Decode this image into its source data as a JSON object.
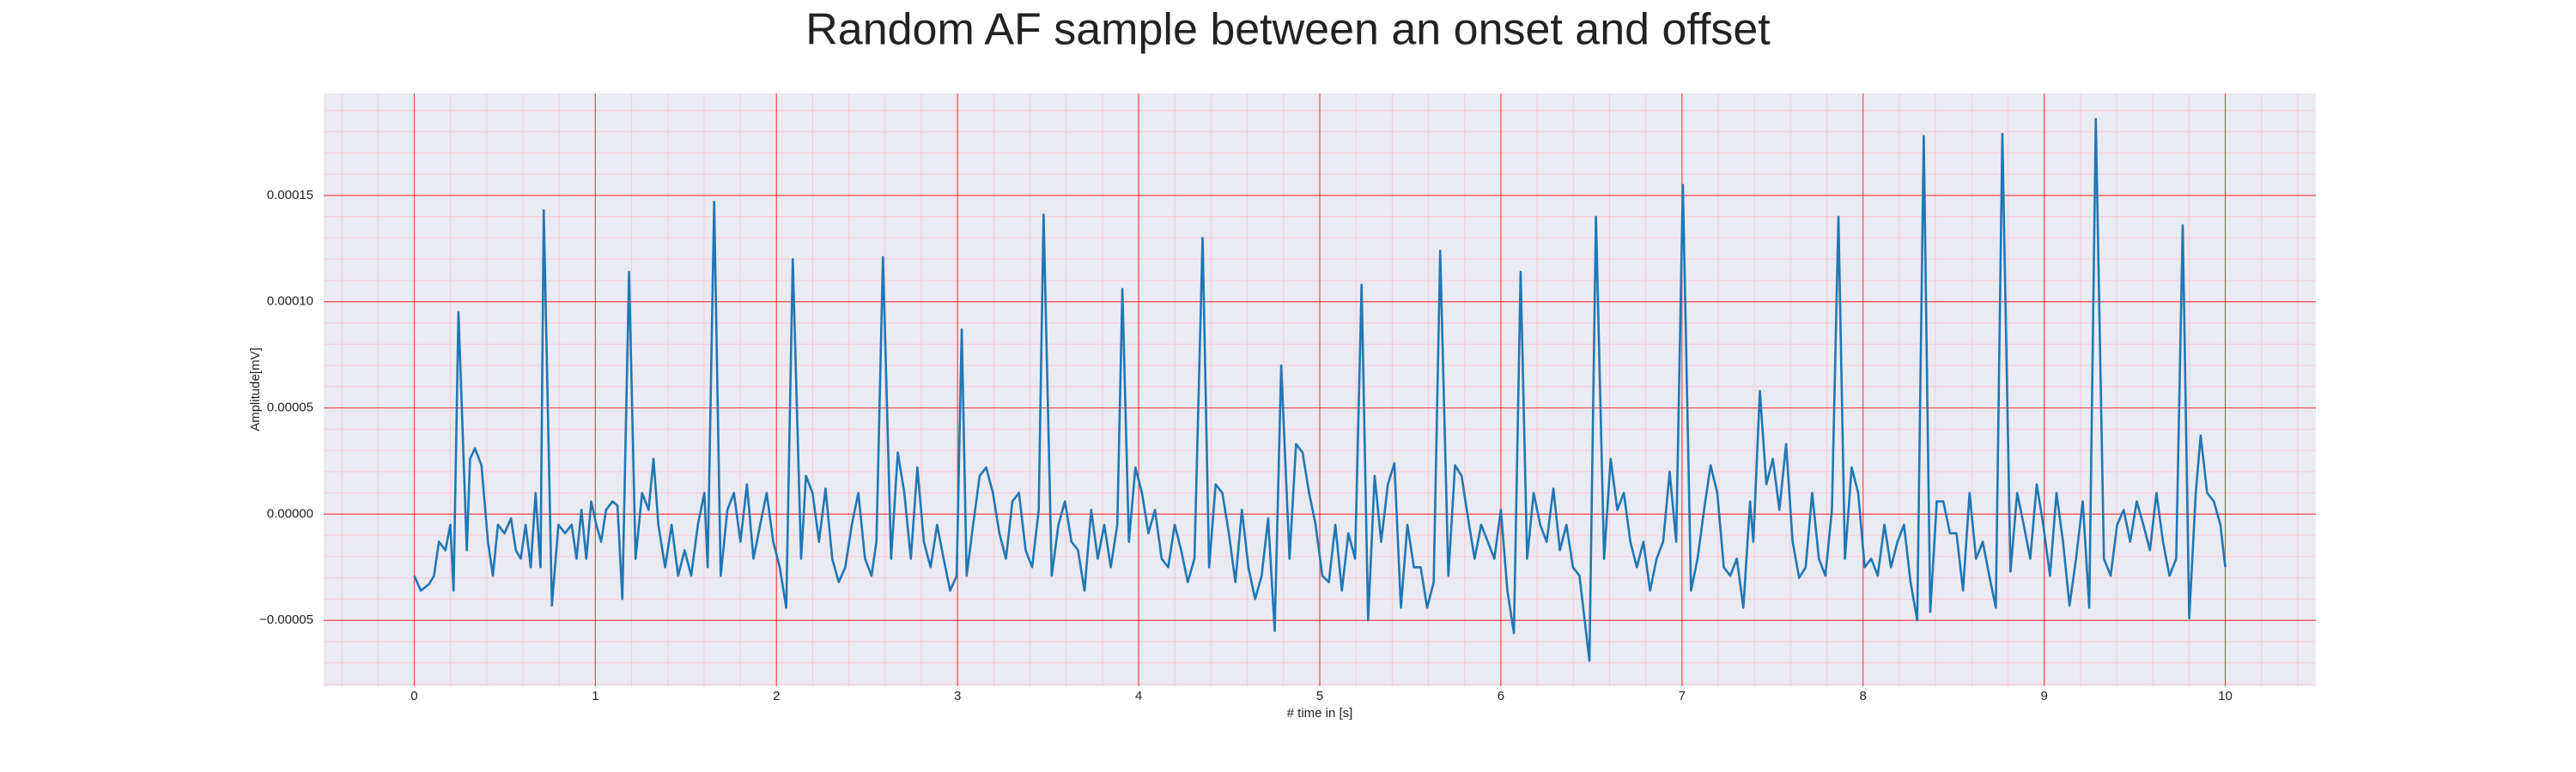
{
  "chart_data": {
    "type": "line",
    "title": "Random AF sample between an onset and offset",
    "xlabel": "# time in [s]",
    "ylabel": "Amplitude[mV]",
    "color": "#1f77b4",
    "grid": true,
    "grid_color": "#ff0000",
    "minor_grid": true,
    "minor_grid_color": "#ffc0cb",
    "minor_divisions": 5,
    "xlim": [
      -0.5,
      10.5
    ],
    "xticks": [
      0,
      1,
      2,
      3,
      4,
      5,
      6,
      7,
      8,
      9,
      10
    ],
    "ylim": [
      -8.1e-05,
      0.000198
    ],
    "yticks": [
      {
        "value": -5e-05,
        "label": "−0.00005"
      },
      {
        "value": 0,
        "label": "0.00000"
      },
      {
        "value": 5e-05,
        "label": "0.00005"
      },
      {
        "value": 0.0001,
        "label": "0.00010"
      },
      {
        "value": 0.00015,
        "label": "0.00015"
      }
    ],
    "x": [
      0.0,
      0.036,
      0.081,
      0.109,
      0.136,
      0.172,
      0.199,
      0.217,
      0.244,
      0.29,
      0.308,
      0.335,
      0.371,
      0.407,
      0.434,
      0.462,
      0.498,
      0.534,
      0.561,
      0.588,
      0.615,
      0.643,
      0.67,
      0.697,
      0.715,
      0.76,
      0.796,
      0.833,
      0.869,
      0.896,
      0.923,
      0.95,
      0.977,
      1.005,
      1.032,
      1.059,
      1.095,
      1.122,
      1.149,
      1.186,
      1.222,
      1.258,
      1.294,
      1.321,
      1.348,
      1.385,
      1.421,
      1.457,
      1.493,
      1.529,
      1.566,
      1.602,
      1.62,
      1.656,
      1.692,
      1.729,
      1.765,
      1.801,
      1.837,
      1.873,
      1.91,
      1.946,
      1.982,
      2.018,
      2.054,
      2.09,
      2.136,
      2.163,
      2.199,
      2.235,
      2.271,
      2.308,
      2.344,
      2.38,
      2.416,
      2.452,
      2.489,
      2.525,
      2.552,
      2.588,
      2.633,
      2.67,
      2.706,
      2.742,
      2.778,
      2.814,
      2.851,
      2.887,
      2.923,
      2.959,
      2.995,
      3.023,
      3.05,
      3.086,
      3.122,
      3.158,
      3.195,
      3.231,
      3.267,
      3.303,
      3.339,
      3.376,
      3.412,
      3.448,
      3.475,
      3.52,
      3.557,
      3.593,
      3.629,
      3.665,
      3.701,
      3.738,
      3.774,
      3.81,
      3.846,
      3.882,
      3.91,
      3.946,
      3.982,
      4.018,
      4.054,
      4.09,
      4.127,
      4.163,
      4.199,
      4.235,
      4.271,
      4.308,
      4.353,
      4.389,
      4.425,
      4.462,
      4.498,
      4.534,
      4.57,
      4.606,
      4.643,
      4.679,
      4.715,
      4.751,
      4.787,
      4.833,
      4.869,
      4.905,
      4.941,
      4.977,
      5.014,
      5.05,
      5.086,
      5.122,
      5.158,
      5.195,
      5.231,
      5.267,
      5.303,
      5.339,
      5.376,
      5.412,
      5.448,
      5.484,
      5.52,
      5.557,
      5.593,
      5.629,
      5.665,
      5.71,
      5.747,
      5.783,
      5.819,
      5.855,
      5.891,
      5.928,
      5.964,
      6.0,
      6.036,
      6.072,
      6.109,
      6.145,
      6.181,
      6.217,
      6.253,
      6.29,
      6.326,
      6.362,
      6.398,
      6.434,
      6.489,
      6.525,
      6.57,
      6.606,
      6.643,
      6.679,
      6.715,
      6.751,
      6.787,
      6.824,
      6.86,
      6.896,
      6.932,
      6.968,
      7.005,
      7.05,
      7.086,
      7.122,
      7.158,
      7.195,
      7.231,
      7.267,
      7.303,
      7.339,
      7.376,
      7.394,
      7.43,
      7.466,
      7.502,
      7.538,
      7.575,
      7.611,
      7.647,
      7.683,
      7.719,
      7.756,
      7.792,
      7.828,
      7.864,
      7.9,
      7.937,
      7.973,
      8.009,
      8.045,
      8.081,
      8.118,
      8.154,
      8.19,
      8.226,
      8.262,
      8.299,
      8.335,
      8.371,
      8.407,
      8.443,
      8.48,
      8.516,
      8.552,
      8.588,
      8.624,
      8.661,
      8.697,
      8.733,
      8.769,
      8.814,
      8.851,
      8.887,
      8.923,
      8.959,
      8.995,
      9.032,
      9.068,
      9.104,
      9.14,
      9.176,
      9.213,
      9.249,
      9.285,
      9.33,
      9.367,
      9.403,
      9.439,
      9.475,
      9.511,
      9.548,
      9.584,
      9.62,
      9.656,
      9.692,
      9.729,
      9.765,
      9.801,
      9.837,
      9.864,
      9.9,
      9.937,
      9.973,
      10.0
    ],
    "values": [
      -2.9e-05,
      -3.6e-05,
      -3.3e-05,
      -2.9e-05,
      -1.3e-05,
      -1.7e-05,
      -5e-06,
      -3.6e-05,
      9.5e-05,
      -1.7e-05,
      2.6e-05,
      3.1e-05,
      2.3e-05,
      -1.3e-05,
      -2.9e-05,
      -5e-06,
      -9e-06,
      -2e-06,
      -1.7e-05,
      -2.1e-05,
      -5e-06,
      -2.5e-05,
      1e-05,
      -2.5e-05,
      0.000143,
      -4.3e-05,
      -5e-06,
      -9e-06,
      -5e-06,
      -2.1e-05,
      2e-06,
      -2.1e-05,
      6e-06,
      -5e-06,
      -1.3e-05,
      2e-06,
      6e-06,
      4e-06,
      -4e-05,
      0.000114,
      -2.1e-05,
      1e-05,
      2e-06,
      2.6e-05,
      -5e-06,
      -2.5e-05,
      -5e-06,
      -2.9e-05,
      -1.7e-05,
      -2.9e-05,
      -5e-06,
      1e-05,
      -2.5e-05,
      0.000147,
      -2.9e-05,
      2e-06,
      1e-05,
      -1.3e-05,
      1.4e-05,
      -2.1e-05,
      -5e-06,
      1e-05,
      -1.3e-05,
      -2.5e-05,
      -4.4e-05,
      0.00012,
      -2.1e-05,
      1.8e-05,
      1e-05,
      -1.3e-05,
      1.2e-05,
      -2.1e-05,
      -3.2e-05,
      -2.5e-05,
      -5e-06,
      1e-05,
      -2.1e-05,
      -2.9e-05,
      -1.3e-05,
      0.000121,
      -2.1e-05,
      2.9e-05,
      1e-05,
      -2.1e-05,
      2.2e-05,
      -1.3e-05,
      -2.5e-05,
      -5e-06,
      -2.1e-05,
      -3.6e-05,
      -2.9e-05,
      8.7e-05,
      -2.9e-05,
      -5e-06,
      1.8e-05,
      2.2e-05,
      1e-05,
      -9e-06,
      -2.1e-05,
      6e-06,
      1e-05,
      -1.7e-05,
      -2.5e-05,
      2e-06,
      0.000141,
      -2.9e-05,
      -5e-06,
      6e-06,
      -1.3e-05,
      -1.7e-05,
      -3.6e-05,
      2e-06,
      -2.1e-05,
      -5e-06,
      -2.5e-05,
      -5e-06,
      0.000106,
      -1.3e-05,
      2.2e-05,
      1e-05,
      -9e-06,
      2e-06,
      -2.1e-05,
      -2.5e-05,
      -5e-06,
      -1.7e-05,
      -3.2e-05,
      -2.1e-05,
      0.00013,
      -2.5e-05,
      1.4e-05,
      1e-05,
      -9e-06,
      -3.2e-05,
      2e-06,
      -2.5e-05,
      -4e-05,
      -2.9e-05,
      -2e-06,
      -5.5e-05,
      7e-05,
      -2.1e-05,
      3.3e-05,
      2.9e-05,
      1e-05,
      -5e-06,
      -2.9e-05,
      -3.2e-05,
      -5e-06,
      -3.6e-05,
      -9e-06,
      -2.1e-05,
      0.000108,
      -5e-05,
      1.8e-05,
      -1.3e-05,
      1.4e-05,
      2.4e-05,
      -4.4e-05,
      -5e-06,
      -2.5e-05,
      -2.5e-05,
      -4.4e-05,
      -3.2e-05,
      0.000124,
      -2.9e-05,
      2.3e-05,
      1.8e-05,
      -2e-06,
      -2.1e-05,
      -5e-06,
      -1.3e-05,
      -2.1e-05,
      2e-06,
      -3.6e-05,
      -5.6e-05,
      0.000114,
      -2.1e-05,
      1e-05,
      -5e-06,
      -1.3e-05,
      1.2e-05,
      -1.7e-05,
      -5e-06,
      -2.5e-05,
      -2.9e-05,
      -6.9e-05,
      0.00014,
      -2.1e-05,
      2.6e-05,
      2e-06,
      1e-05,
      -1.3e-05,
      -2.5e-05,
      -1.3e-05,
      -3.6e-05,
      -2.1e-05,
      -1.3e-05,
      2e-05,
      -1.3e-05,
      0.000155,
      -3.6e-05,
      -2.1e-05,
      2e-06,
      2.3e-05,
      1e-05,
      -2.5e-05,
      -2.9e-05,
      -2.1e-05,
      -4.4e-05,
      6e-06,
      -1.3e-05,
      5.8e-05,
      1.4e-05,
      2.6e-05,
      2e-06,
      3.3e-05,
      -1.3e-05,
      -3e-05,
      -2.5e-05,
      1e-05,
      -2.1e-05,
      -2.9e-05,
      2e-06,
      0.00014,
      -2.1e-05,
      2.2e-05,
      1e-05,
      -2.5e-05,
      -2.1e-05,
      -2.9e-05,
      -5e-06,
      -2.5e-05,
      -1.3e-05,
      -5e-06,
      -3.2e-05,
      -5e-05,
      0.000178,
      -4.6e-05,
      6e-06,
      6e-06,
      -9e-06,
      -9e-06,
      -3.6e-05,
      1e-05,
      -2.1e-05,
      -1.3e-05,
      -2.9e-05,
      -4.4e-05,
      0.000179,
      -2.7e-05,
      1e-05,
      -5e-06,
      -2.1e-05,
      1.4e-05,
      -5e-06,
      -2.9e-05,
      1e-05,
      -1.3e-05,
      -4.3e-05,
      -2.1e-05,
      6e-06,
      -4.4e-05,
      0.000186,
      -2.1e-05,
      -2.9e-05,
      -5e-06,
      2e-06,
      -1.3e-05,
      6e-06,
      -5e-06,
      -1.7e-05,
      1e-05,
      -1.3e-05,
      -2.9e-05,
      -2.1e-05,
      0.000136,
      -4.9e-05,
      1e-05,
      3.7e-05,
      1e-05,
      6e-06,
      -5e-06,
      -2.5e-05
    ]
  }
}
